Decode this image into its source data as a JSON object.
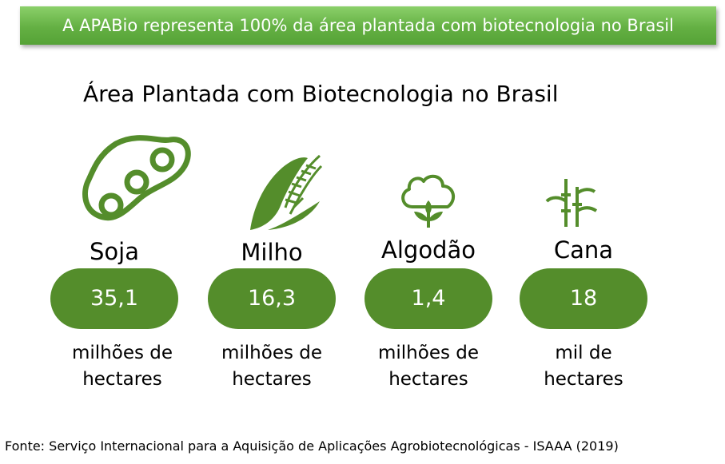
{
  "banner": {
    "text": "A APABio representa 100% da área plantada com biotecnologia no Brasil"
  },
  "title": "Área Plantada com Biotecnologia no Brasil",
  "colors": {
    "banner_green": "#64b043",
    "pill_green": "#548d2b",
    "icon_green": "#548d2b"
  },
  "crops": [
    {
      "name": "Soja",
      "value": "35,1",
      "unit_line1": "milhões de",
      "unit_line2": "hectares",
      "icon": "soybean-pod-icon"
    },
    {
      "name": "Milho",
      "value": "16,3",
      "unit_line1": "milhões de",
      "unit_line2": "hectares",
      "icon": "corn-icon"
    },
    {
      "name": "Algodão",
      "value": "1,4",
      "unit_line1": "milhões de",
      "unit_line2": "hectares",
      "icon": "cotton-boll-icon"
    },
    {
      "name": "Cana",
      "value": "18",
      "unit_line1": "mil de",
      "unit_line2": "hectares",
      "icon": "sugarcane-icon"
    }
  ],
  "source": "Fonte: Serviço Internacional para a Aquisição de Aplicações Agrobiotecnológicas - ISAAA (2019)"
}
